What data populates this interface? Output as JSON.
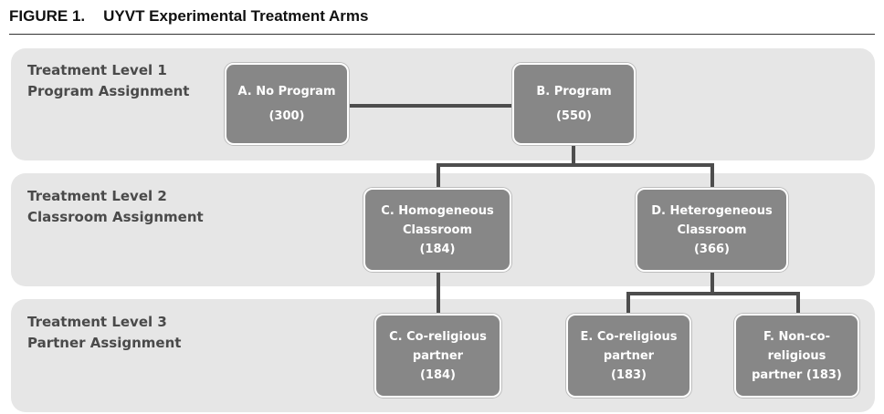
{
  "figure": {
    "number": "FIGURE 1.",
    "title": "UYVT Experimental Treatment Arms"
  },
  "levels": [
    {
      "line1": "Treatment Level 1",
      "line2": "Program Assignment"
    },
    {
      "line1": "Treatment Level 2",
      "line2": "Classroom Assignment"
    },
    {
      "line1": "Treatment Level 3",
      "line2": "Partner Assignment"
    }
  ],
  "nodes": {
    "a": {
      "lines": [
        "A. No Program"
      ],
      "count": "(300)"
    },
    "b": {
      "lines": [
        "B. Program"
      ],
      "count": "(550)"
    },
    "c": {
      "lines": [
        "C. Homogeneous",
        "Classroom"
      ],
      "count": "(184)"
    },
    "d": {
      "lines": [
        "D. Heterogeneous",
        "Classroom"
      ],
      "count": "(366)"
    },
    "c2": {
      "lines": [
        "C. Co-religious",
        "partner"
      ],
      "count": "(184)"
    },
    "e": {
      "lines": [
        "E. Co-religious",
        "partner"
      ],
      "count": "(183)"
    },
    "f": {
      "lines": [
        "F. Non-co-",
        "religious",
        "partner (183)"
      ],
      "count": ""
    }
  },
  "colors": {
    "band": "#e6e6e6",
    "node": "#878787",
    "connector": "#4d4d4d",
    "label": "#4a4a4a"
  }
}
